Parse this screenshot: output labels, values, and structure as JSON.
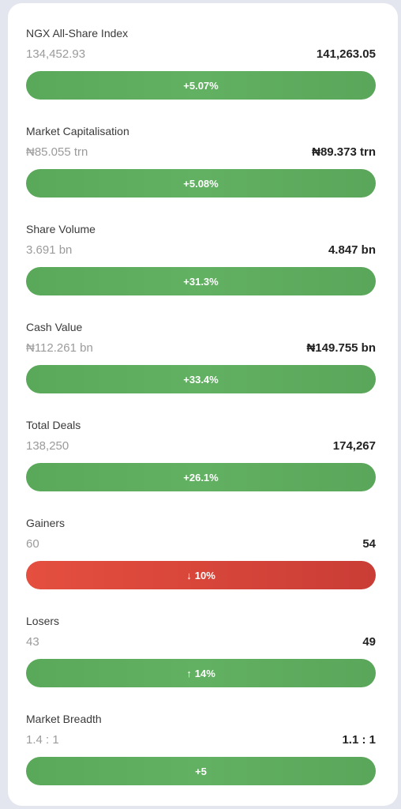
{
  "colors": {
    "up": "#5aa85a",
    "down": "#d8463a",
    "background": "#e4e6ef",
    "card": "#ffffff"
  },
  "metrics": [
    {
      "title": "NGX All-Share Index",
      "previous": "134,452.93",
      "current": "141,263.05",
      "change": "+5.07%",
      "direction": "up",
      "arrow": ""
    },
    {
      "title": "Market Capitalisation",
      "previous": "₦85.055 trn",
      "current": "₦89.373 trn",
      "change": "+5.08%",
      "direction": "up",
      "arrow": ""
    },
    {
      "title": "Share Volume",
      "previous": "3.691 bn",
      "current": "4.847 bn",
      "change": "+31.3%",
      "direction": "up",
      "arrow": ""
    },
    {
      "title": "Cash Value",
      "previous": "₦112.261 bn",
      "current": "₦149.755 bn",
      "change": "+33.4%",
      "direction": "up",
      "arrow": ""
    },
    {
      "title": "Total Deals",
      "previous": "138,250",
      "current": "174,267",
      "change": "+26.1%",
      "direction": "up",
      "arrow": ""
    },
    {
      "title": "Gainers",
      "previous": "60",
      "current": "54",
      "change": "10%",
      "direction": "down",
      "arrow": "↓"
    },
    {
      "title": "Losers",
      "previous": "43",
      "current": "49",
      "change": "14%",
      "direction": "up",
      "arrow": "↑"
    },
    {
      "title": "Market Breadth",
      "previous": "1.4 : 1",
      "current": "1.1 : 1",
      "change": "+5",
      "direction": "up",
      "arrow": ""
    }
  ]
}
